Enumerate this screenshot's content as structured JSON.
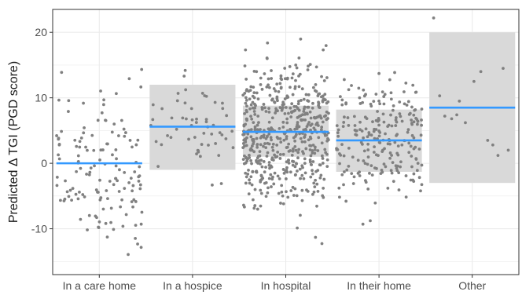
{
  "chart_data": {
    "type": "scatter",
    "subtype": "jitter-with-crossbar",
    "title": "",
    "xlabel": "",
    "ylabel": "Predicted Δ TGI (PGD score)",
    "ylim": [
      -17,
      23.5
    ],
    "yticks": [
      -10,
      0,
      10,
      20
    ],
    "grid": true,
    "legend": "none",
    "categories": [
      "In a care home",
      "In a hospice",
      "In hospital",
      "In their home",
      "Other"
    ],
    "groups": [
      {
        "name": "In a care home",
        "mean": 0.0,
        "band": null,
        "n": 140,
        "seed": 11,
        "spread": 6.0,
        "min": -15.5,
        "max": 19.8
      },
      {
        "name": "In a hospice",
        "mean": 5.6,
        "band": [
          -1.0,
          12.0
        ],
        "n": 55,
        "seed": 23,
        "spread": 3.5,
        "min": -4.5,
        "max": 17.0
      },
      {
        "name": "In hospital",
        "mean": 4.8,
        "band": [
          1.0,
          8.8
        ],
        "n": 560,
        "seed": 37,
        "spread": 5.5,
        "min": -13.5,
        "max": 19.8
      },
      {
        "name": "In their home",
        "mean": 3.5,
        "band": [
          -1.3,
          8.2
        ],
        "n": 230,
        "seed": 51,
        "spread": 4.3,
        "min": -11.0,
        "max": 15.0
      },
      {
        "name": "Other",
        "mean": 8.5,
        "band": [
          -3.0,
          20.0
        ],
        "n": 14,
        "seed": 67,
        "spread": 5.0,
        "min": 1.0,
        "max": 22.2
      }
    ],
    "other_points": [
      [
        22.2,
        0.05
      ],
      [
        10.3,
        0.12
      ],
      [
        7.2,
        0.18
      ],
      [
        6.8,
        0.26
      ],
      [
        7.4,
        0.32
      ],
      [
        6.2,
        0.42
      ],
      [
        12.5,
        0.52
      ],
      [
        14.0,
        0.6
      ],
      [
        3.5,
        0.68
      ],
      [
        2.8,
        0.74
      ],
      [
        1.2,
        0.8
      ],
      [
        14.5,
        0.86
      ],
      [
        2.0,
        0.92
      ],
      [
        9.5,
        0.35
      ]
    ],
    "colors": {
      "points": "#808080",
      "mean_line": "#3399ff",
      "band": "#d9d9d9",
      "grid": "#ebebeb",
      "panel_border": "#333333"
    }
  }
}
